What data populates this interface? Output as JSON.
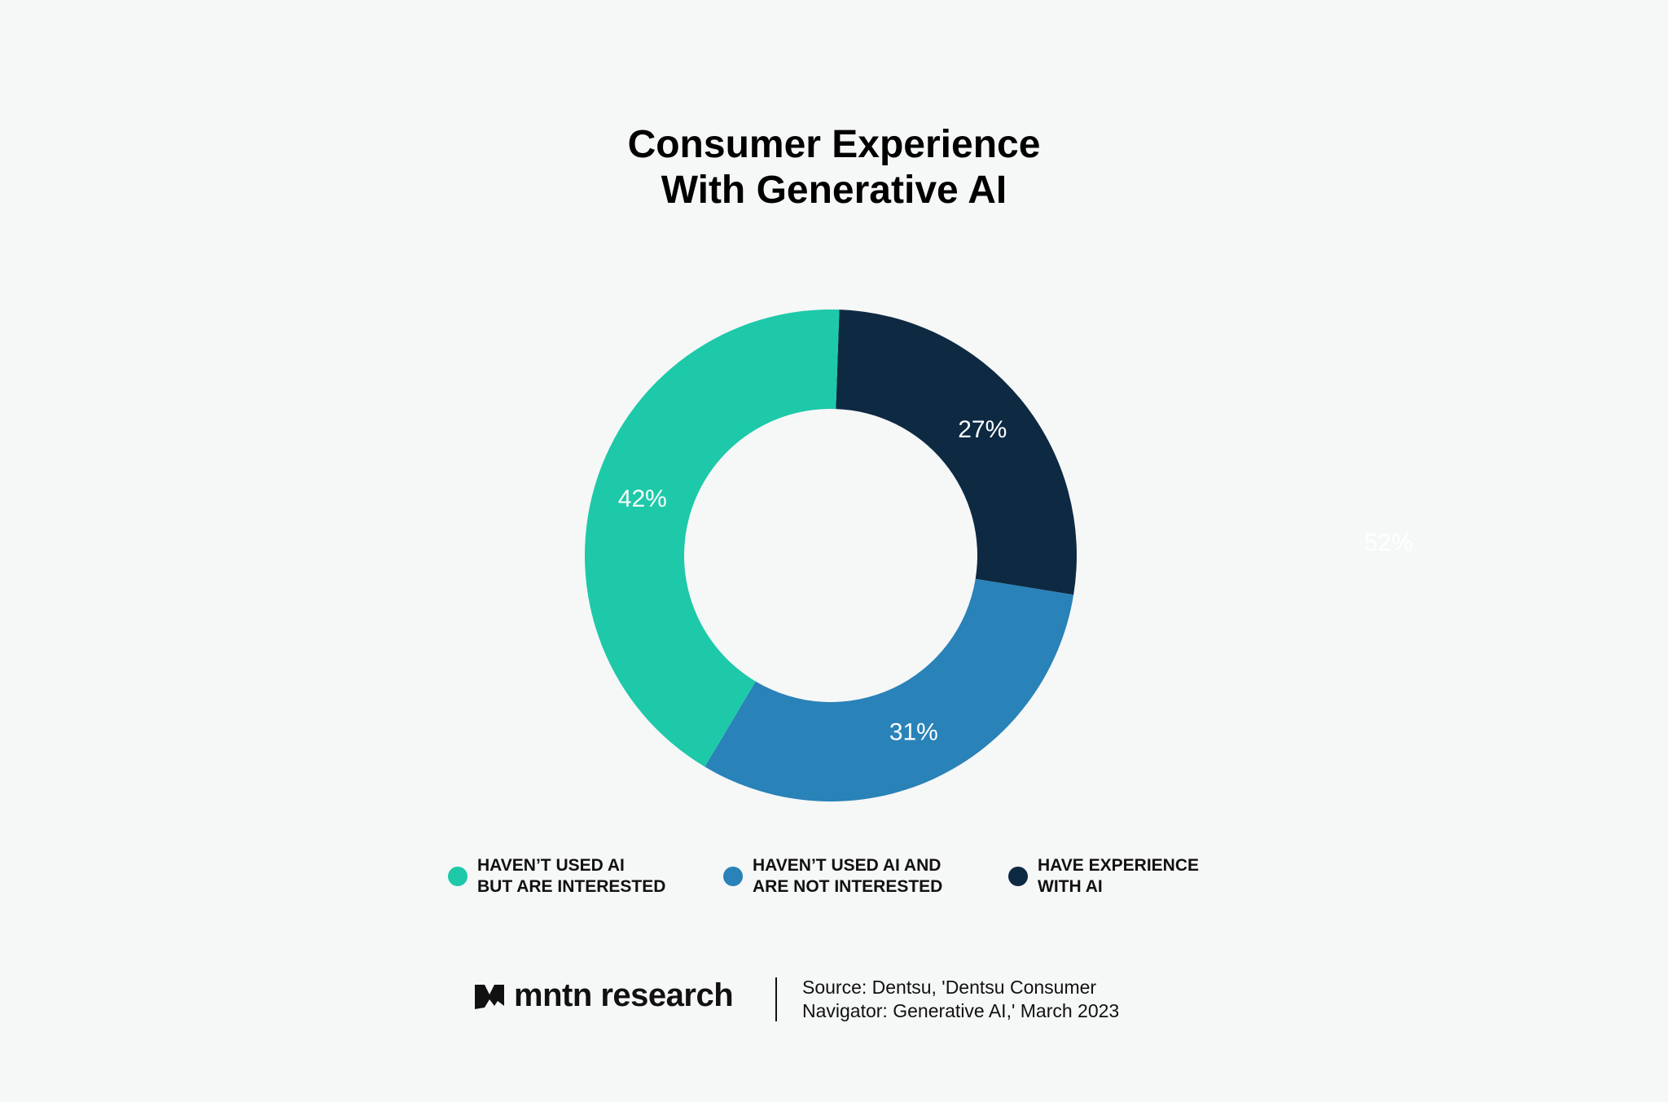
{
  "chart_data": {
    "type": "donut",
    "title": "Consumer Experience\nWith Generative AI",
    "categories": [
      "HAVEN’T USED AI\nBUT ARE INTERESTED",
      "HAVEN’T USED AI AND\nARE NOT INTERESTED",
      "HAVE EXPERIENCE\nWITH AI"
    ],
    "values": [
      42,
      31,
      27
    ],
    "value_labels": [
      "42%",
      "31%",
      "27%"
    ],
    "colors": [
      "#1dc9a9",
      "#2982b8",
      "#0e2a42"
    ],
    "annotations": [
      "52%"
    ],
    "brand": "mntn research",
    "source": "Source: Dentsu, 'Dentsu Consumer\nNavigator: Generative AI,' March 2023"
  }
}
